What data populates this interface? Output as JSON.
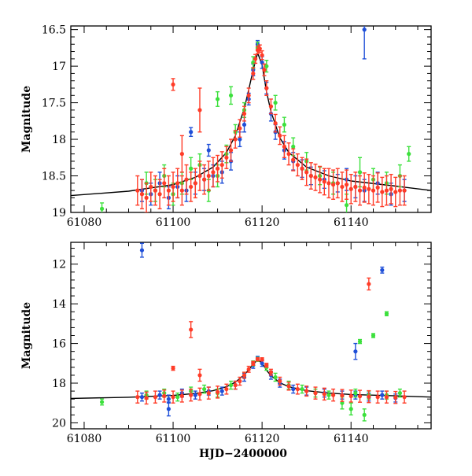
{
  "chart_data": [
    {
      "type": "scatter",
      "panel": "top",
      "title": "",
      "xlabel": "",
      "ylabel": "Magnitude",
      "xlim": [
        61077,
        61158
      ],
      "ylim": [
        19.0,
        16.45
      ],
      "y_inverted": true,
      "x_ticks": [
        61080,
        61100,
        61120,
        61140
      ],
      "x_tick_labels": [
        "61080",
        "61100",
        "61120",
        "61140"
      ],
      "y_ticks": [
        16.5,
        17,
        17.5,
        18,
        18.5,
        19
      ],
      "y_tick_labels": [
        "16.5",
        "17",
        "17.5",
        "18",
        "18.5",
        "19"
      ],
      "grid": false,
      "model_curve": {
        "name": "model",
        "color": "#000000",
        "x": [
          61077,
          61090,
          61100,
          61105,
          61109,
          61112,
          61114,
          61116,
          61117,
          61118,
          61119,
          61120,
          61121,
          61122,
          61124,
          61126,
          61130,
          61135,
          61140,
          61150,
          61158
        ],
        "y": [
          18.77,
          18.71,
          18.62,
          18.52,
          18.38,
          18.18,
          17.95,
          17.58,
          17.32,
          17.05,
          16.82,
          16.98,
          17.35,
          17.62,
          17.98,
          18.18,
          18.38,
          18.5,
          18.57,
          18.64,
          18.7
        ]
      },
      "series": [
        {
          "name": "blue",
          "color": "#1f4fd8",
          "x": [
            61093,
            61095,
            61097,
            61099,
            61101,
            61103,
            61105,
            61107,
            61109,
            61111,
            61113,
            61115,
            61116,
            61117,
            61118,
            61119,
            61120,
            61121,
            61122,
            61123,
            61125,
            61127,
            61129,
            61131,
            61134,
            61137,
            61139,
            61141,
            61143,
            61146,
            61149,
            61152,
            61104,
            61108,
            61143
          ],
          "y": [
            18.7,
            18.75,
            18.6,
            18.8,
            18.65,
            18.7,
            18.6,
            18.55,
            18.5,
            18.45,
            18.3,
            18.0,
            17.8,
            17.45,
            17.05,
            16.7,
            16.95,
            17.3,
            17.65,
            17.9,
            18.15,
            18.3,
            18.4,
            18.5,
            18.55,
            18.6,
            18.55,
            18.65,
            18.7,
            18.6,
            18.75,
            18.7,
            17.9,
            18.15,
            16.5
          ],
          "errors": [
            0.15,
            0.15,
            0.15,
            0.15,
            0.15,
            0.15,
            0.15,
            0.15,
            0.15,
            0.15,
            0.12,
            0.1,
            0.1,
            0.08,
            0.08,
            0.05,
            0.08,
            0.08,
            0.1,
            0.1,
            0.12,
            0.12,
            0.12,
            0.12,
            0.12,
            0.12,
            0.15,
            0.15,
            0.15,
            0.15,
            0.15,
            0.15,
            0.06,
            0.08,
            0.4
          ]
        },
        {
          "name": "green",
          "color": "#3ce03c",
          "x": [
            61084,
            61094,
            61096,
            61098,
            61100,
            61102,
            61104,
            61106,
            61108,
            61110,
            61112,
            61114,
            61116,
            61118,
            61119,
            61121,
            61123,
            61125,
            61127,
            61130,
            61133,
            61136,
            61139,
            61142,
            61145,
            61148,
            61151,
            61153,
            61110,
            61113
          ],
          "y": [
            18.95,
            18.6,
            18.7,
            18.5,
            18.75,
            18.6,
            18.4,
            18.35,
            18.7,
            18.5,
            18.2,
            17.9,
            17.6,
            16.95,
            16.75,
            17.0,
            17.5,
            17.8,
            18.1,
            18.3,
            18.5,
            18.6,
            18.9,
            18.45,
            18.55,
            18.6,
            18.5,
            18.2,
            17.45,
            17.4
          ],
          "errors": [
            0.08,
            0.15,
            0.15,
            0.15,
            0.15,
            0.15,
            0.15,
            0.15,
            0.15,
            0.15,
            0.12,
            0.1,
            0.1,
            0.08,
            0.08,
            0.08,
            0.1,
            0.1,
            0.12,
            0.12,
            0.12,
            0.15,
            0.15,
            0.2,
            0.15,
            0.15,
            0.15,
            0.1,
            0.1,
            0.12
          ]
        },
        {
          "name": "red",
          "color": "#ff3c28",
          "x": [
            61092,
            61093,
            61094,
            61095,
            61096,
            61097,
            61098,
            61099,
            61100,
            61101,
            61102,
            61103,
            61104,
            61105,
            61106,
            61107,
            61108,
            61109,
            61110,
            61111,
            61112,
            61113,
            61114,
            61115,
            61116,
            61117,
            61118,
            61118.5,
            61119,
            61119.5,
            61120,
            61120.5,
            61121,
            61122,
            61123,
            61124,
            61125,
            61126,
            61127,
            61128,
            61129,
            61130,
            61131,
            61132,
            61133,
            61134,
            61135,
            61136,
            61137,
            61138,
            61139,
            61140,
            61141,
            61142,
            61143,
            61144,
            61145,
            61146,
            61147,
            61148,
            61149,
            61150,
            61151,
            61152,
            61100,
            61106,
            61102
          ],
          "y": [
            18.7,
            18.75,
            18.8,
            18.65,
            18.7,
            18.75,
            18.6,
            18.7,
            18.65,
            18.6,
            18.7,
            18.55,
            18.65,
            18.6,
            18.5,
            18.55,
            18.5,
            18.45,
            18.4,
            18.35,
            18.25,
            18.15,
            18.0,
            17.85,
            17.65,
            17.4,
            17.1,
            16.9,
            16.78,
            16.76,
            16.85,
            17.05,
            17.3,
            17.55,
            17.78,
            17.95,
            18.1,
            18.2,
            18.28,
            18.35,
            18.4,
            18.45,
            18.5,
            18.52,
            18.55,
            18.58,
            18.6,
            18.62,
            18.6,
            18.65,
            18.62,
            18.68,
            18.65,
            18.7,
            18.66,
            18.68,
            18.7,
            18.66,
            18.72,
            18.7,
            18.68,
            18.72,
            18.7,
            18.7,
            17.25,
            17.6,
            18.2
          ],
          "errors": [
            0.2,
            0.2,
            0.2,
            0.2,
            0.2,
            0.2,
            0.2,
            0.2,
            0.2,
            0.2,
            0.2,
            0.2,
            0.2,
            0.2,
            0.2,
            0.2,
            0.2,
            0.2,
            0.18,
            0.18,
            0.15,
            0.15,
            0.12,
            0.12,
            0.1,
            0.1,
            0.08,
            0.06,
            0.05,
            0.05,
            0.06,
            0.08,
            0.1,
            0.1,
            0.12,
            0.12,
            0.15,
            0.15,
            0.15,
            0.15,
            0.15,
            0.18,
            0.18,
            0.18,
            0.18,
            0.18,
            0.2,
            0.2,
            0.2,
            0.2,
            0.2,
            0.2,
            0.2,
            0.2,
            0.2,
            0.2,
            0.2,
            0.2,
            0.2,
            0.2,
            0.2,
            0.2,
            0.2,
            0.2,
            0.08,
            0.3,
            0.25
          ]
        }
      ]
    },
    {
      "type": "scatter",
      "panel": "bottom",
      "title": "",
      "xlabel": "HJD−2400000",
      "ylabel": "Magnitude",
      "xlim": [
        61077,
        61158
      ],
      "ylim": [
        20.3,
        10.9
      ],
      "y_inverted": true,
      "x_ticks": [
        61080,
        61100,
        61120,
        61140
      ],
      "x_tick_labels": [
        "61080",
        "61100",
        "61120",
        "61140"
      ],
      "y_ticks": [
        12,
        14,
        16,
        18,
        20
      ],
      "y_tick_labels": [
        "12",
        "14",
        "16",
        "18",
        "20"
      ],
      "grid": false,
      "model_curve": {
        "name": "model",
        "color": "#000000",
        "x": [
          61077,
          61090,
          61100,
          61105,
          61109,
          61112,
          61114,
          61116,
          61117,
          61118,
          61119,
          61120,
          61121,
          61122,
          61124,
          61126,
          61130,
          61135,
          61140,
          61150,
          61158
        ],
        "y": [
          18.77,
          18.71,
          18.62,
          18.52,
          18.38,
          18.18,
          17.95,
          17.58,
          17.32,
          17.05,
          16.82,
          16.98,
          17.35,
          17.62,
          17.98,
          18.18,
          18.38,
          18.5,
          18.57,
          18.64,
          18.7
        ]
      },
      "series": [
        {
          "name": "blue",
          "color": "#1f4fd8",
          "x": [
            61093,
            61097,
            61099,
            61102,
            61105,
            61108,
            61111,
            61114,
            61116,
            61118,
            61119,
            61120,
            61122,
            61124,
            61127,
            61130,
            61134,
            61138,
            61141,
            61144,
            61147,
            61150,
            61093,
            61099,
            61141,
            61147
          ],
          "y": [
            18.7,
            18.6,
            18.8,
            18.5,
            18.6,
            18.4,
            18.4,
            18.1,
            17.7,
            17.1,
            16.75,
            17.0,
            17.6,
            18.0,
            18.3,
            18.4,
            18.5,
            18.6,
            18.6,
            18.7,
            18.6,
            18.75,
            11.3,
            19.3,
            16.4,
            12.3
          ],
          "errors": [
            0.2,
            0.2,
            0.2,
            0.2,
            0.2,
            0.2,
            0.2,
            0.2,
            0.2,
            0.15,
            0.1,
            0.15,
            0.2,
            0.2,
            0.2,
            0.2,
            0.2,
            0.2,
            0.2,
            0.2,
            0.2,
            0.2,
            0.35,
            0.35,
            0.4,
            0.15
          ]
        },
        {
          "name": "green",
          "color": "#3ce03c",
          "x": [
            61084,
            61094,
            61098,
            61101,
            61104,
            61107,
            61110,
            61113,
            61116,
            61118,
            61119,
            61121,
            61123,
            61126,
            61129,
            61132,
            61135,
            61138,
            61141,
            61144,
            61148,
            61151,
            61142,
            61145,
            61148,
            61140,
            61143
          ],
          "y": [
            18.95,
            18.6,
            18.5,
            18.7,
            18.4,
            18.3,
            18.5,
            18.1,
            17.6,
            17.0,
            16.8,
            17.2,
            17.7,
            18.1,
            18.3,
            18.5,
            18.6,
            19.0,
            18.5,
            18.6,
            18.6,
            18.5,
            15.9,
            15.6,
            14.5,
            19.3,
            19.6
          ],
          "errors": [
            0.15,
            0.2,
            0.2,
            0.2,
            0.2,
            0.2,
            0.2,
            0.2,
            0.15,
            0.12,
            0.1,
            0.15,
            0.2,
            0.2,
            0.2,
            0.2,
            0.2,
            0.3,
            0.2,
            0.2,
            0.2,
            0.2,
            0.1,
            0.1,
            0.1,
            0.3,
            0.3
          ]
        },
        {
          "name": "red",
          "color": "#ff3c28",
          "x": [
            61092,
            61094,
            61096,
            61098,
            61100,
            61102,
            61104,
            61106,
            61108,
            61110,
            61112,
            61114,
            61115,
            61116,
            61117,
            61118,
            61119,
            61120,
            61121,
            61122,
            61124,
            61126,
            61128,
            61130,
            61132,
            61134,
            61136,
            61138,
            61140,
            61142,
            61144,
            61146,
            61148,
            61150,
            61152,
            61100,
            61104,
            61144,
            61106
          ],
          "y": [
            18.7,
            18.75,
            18.7,
            18.65,
            18.7,
            18.65,
            18.6,
            18.55,
            18.5,
            18.45,
            18.3,
            18.1,
            17.9,
            17.6,
            17.3,
            17.0,
            16.8,
            16.8,
            17.1,
            17.45,
            17.9,
            18.15,
            18.3,
            18.4,
            18.5,
            18.55,
            18.6,
            18.62,
            18.65,
            18.66,
            18.68,
            18.7,
            18.7,
            18.72,
            18.7,
            17.25,
            15.3,
            13.0,
            17.6
          ],
          "errors": [
            0.3,
            0.3,
            0.3,
            0.3,
            0.3,
            0.3,
            0.3,
            0.3,
            0.3,
            0.3,
            0.25,
            0.2,
            0.2,
            0.15,
            0.15,
            0.1,
            0.08,
            0.08,
            0.1,
            0.15,
            0.2,
            0.2,
            0.25,
            0.25,
            0.3,
            0.3,
            0.3,
            0.3,
            0.3,
            0.3,
            0.3,
            0.3,
            0.3,
            0.3,
            0.3,
            0.1,
            0.4,
            0.3,
            0.3
          ]
        }
      ]
    }
  ]
}
